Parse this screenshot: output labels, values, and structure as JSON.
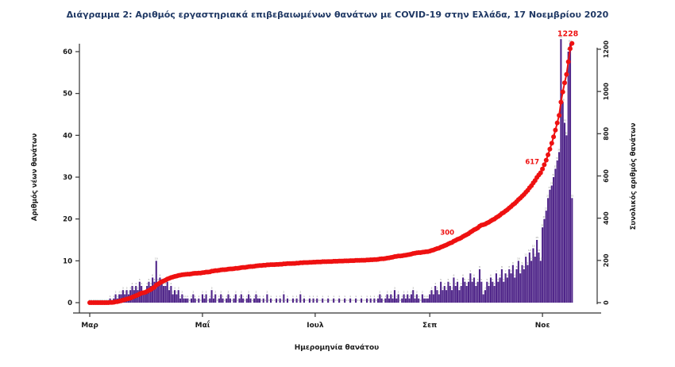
{
  "title": "Διάγραμμα 2: Αριθμός εργαστηριακά επιβεβαιωμένων θανάτων με COVID-19 στην Ελλάδα, 17 Νοεμβρίου 2020",
  "chart_data": {
    "type": "bar",
    "subtype": "daily bars + cumulative point line, dual y-axis",
    "x_start_date": "2020-03-01",
    "x_end_date": "2020-11-17",
    "xlabel": "Ημερομηνία θανάτου",
    "x_ticks": [
      {
        "label": "Μαρ",
        "day_index": 0
      },
      {
        "label": "Μαΐ",
        "day_index": 61
      },
      {
        "label": "Ιουλ",
        "day_index": 122
      },
      {
        "label": "Σεπ",
        "day_index": 184
      },
      {
        "label": "Νοε",
        "day_index": 245
      }
    ],
    "left_axis": {
      "label": "Αριθμός νέων θανάτων",
      "ticks": [
        0,
        10,
        20,
        30,
        40,
        50,
        60
      ],
      "lim": [
        0,
        63
      ]
    },
    "right_axis": {
      "label": "Συνολικός αριθμός θανάτων",
      "ticks": [
        0,
        200,
        400,
        600,
        800,
        1000,
        1200
      ],
      "lim": [
        0,
        1228
      ]
    },
    "series": [
      {
        "name": "daily_new_deaths",
        "type": "bar",
        "color": "#4f2589",
        "values": [
          0,
          0,
          0,
          0,
          0,
          0,
          0,
          0,
          0,
          0,
          0,
          1,
          0,
          1,
          2,
          1,
          2,
          2,
          3,
          2,
          3,
          2,
          3,
          4,
          3,
          4,
          3,
          5,
          4,
          2,
          2,
          4,
          5,
          4,
          6,
          5,
          10,
          5,
          6,
          5,
          4,
          4,
          5,
          3,
          4,
          2,
          3,
          2,
          3,
          1,
          2,
          1,
          1,
          1,
          0,
          1,
          2,
          1,
          0,
          1,
          0,
          2,
          1,
          2,
          0,
          1,
          3,
          1,
          2,
          0,
          1,
          2,
          1,
          0,
          1,
          2,
          1,
          0,
          1,
          2,
          0,
          1,
          2,
          1,
          0,
          1,
          2,
          1,
          0,
          1,
          2,
          1,
          1,
          0,
          1,
          0,
          2,
          0,
          1,
          0,
          0,
          1,
          0,
          1,
          0,
          2,
          0,
          1,
          0,
          0,
          1,
          0,
          1,
          0,
          2,
          0,
          1,
          0,
          0,
          1,
          0,
          1,
          0,
          1,
          0,
          0,
          1,
          0,
          0,
          1,
          0,
          0,
          1,
          0,
          0,
          1,
          0,
          0,
          1,
          0,
          0,
          1,
          0,
          0,
          1,
          0,
          0,
          1,
          0,
          0,
          1,
          0,
          1,
          0,
          1,
          0,
          1,
          2,
          1,
          0,
          1,
          2,
          1,
          2,
          1,
          3,
          1,
          2,
          0,
          1,
          2,
          1,
          2,
          1,
          2,
          3,
          1,
          2,
          1,
          0,
          2,
          1,
          1,
          1,
          2,
          3,
          2,
          4,
          3,
          2,
          5,
          3,
          4,
          3,
          5,
          4,
          3,
          6,
          4,
          5,
          3,
          4,
          6,
          5,
          4,
          5,
          7,
          5,
          6,
          4,
          5,
          8,
          5,
          2,
          3,
          5,
          4,
          6,
          5,
          4,
          7,
          5,
          6,
          8,
          5,
          7,
          6,
          8,
          7,
          9,
          6,
          8,
          10,
          7,
          9,
          8,
          11,
          9,
          12,
          10,
          13,
          11,
          15,
          12,
          10,
          18,
          20,
          22,
          25,
          27,
          28,
          30,
          32,
          34,
          36,
          63,
          48,
          43,
          40,
          60,
          62,
          25
        ]
      },
      {
        "name": "cumulative_deaths",
        "type": "point-line",
        "color": "#ee1111",
        "derived": "cumulative sum of daily_new_deaths, total 1228"
      }
    ],
    "annotations": [
      {
        "text": "300",
        "at_cumulative": 300
      },
      {
        "text": "617",
        "at_cumulative": 617
      },
      {
        "text": "1228",
        "at_cumulative": 1228
      }
    ],
    "colors": {
      "bar": "#4f2589",
      "line": "#ee1111",
      "title": "#1f3864",
      "axis_text": "#1a1a1a",
      "axis_line": "#333333",
      "bar_value_labels": "#8a8a8a"
    },
    "total_deaths": 1228,
    "grid": false,
    "legend": false
  }
}
